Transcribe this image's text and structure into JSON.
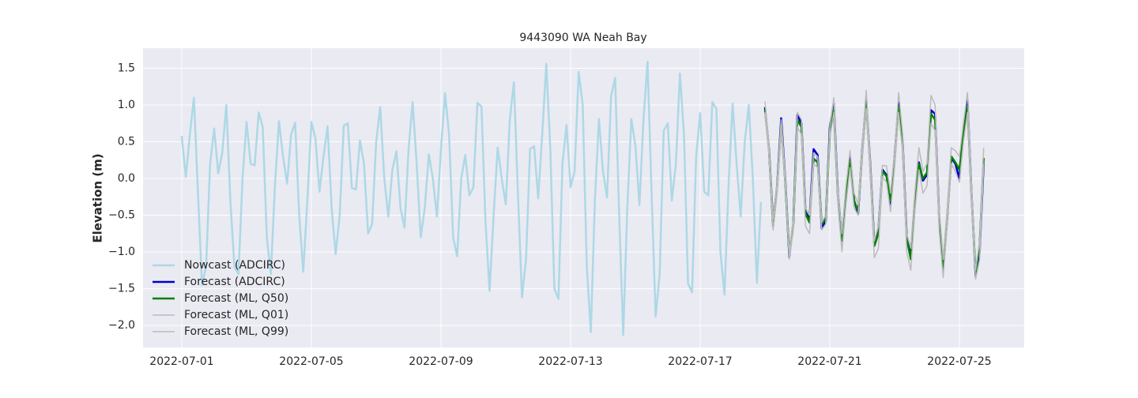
{
  "chart_data": {
    "type": "line",
    "title": "9443090 WA Neah Bay",
    "ylabel": "Elevation (m)",
    "xlim": [
      -1.195,
      26.0
    ],
    "ylim": [
      -2.3,
      1.774
    ],
    "xticks": [
      {
        "value": 0,
        "label": "2022-07-01"
      },
      {
        "value": 4,
        "label": "2022-07-05"
      },
      {
        "value": 8,
        "label": "2022-07-09"
      },
      {
        "value": 12,
        "label": "2022-07-13"
      },
      {
        "value": 16,
        "label": "2022-07-17"
      },
      {
        "value": 20,
        "label": "2022-07-21"
      },
      {
        "value": 24,
        "label": "2022-07-25"
      }
    ],
    "yticks": [
      {
        "value": -2.0,
        "label": "−2.0"
      },
      {
        "value": -1.5,
        "label": "−1.5"
      },
      {
        "value": -1.0,
        "label": "−1.0"
      },
      {
        "value": -0.5,
        "label": "−0.5"
      },
      {
        "value": 0.0,
        "label": "0.0"
      },
      {
        "value": 0.5,
        "label": "0.5"
      },
      {
        "value": 1.0,
        "label": "1.0"
      },
      {
        "value": 1.5,
        "label": "1.5"
      }
    ],
    "grid": true,
    "legend": "lower left",
    "series": [
      {
        "name": "Nowcast (ADCIRC)",
        "color": "#add8e6",
        "linewidth": 2.5,
        "x": [
          0,
          0.125,
          0.25,
          0.375,
          0.5,
          0.625,
          0.75,
          0.875,
          1,
          1.125,
          1.25,
          1.375,
          1.5,
          1.625,
          1.75,
          1.875,
          2,
          2.125,
          2.25,
          2.375,
          2.5,
          2.625,
          2.75,
          2.875,
          3,
          3.125,
          3.25,
          3.375,
          3.5,
          3.625,
          3.75,
          3.875,
          4,
          4.125,
          4.25,
          4.375,
          4.5,
          4.625,
          4.75,
          4.875,
          5,
          5.125,
          5.25,
          5.375,
          5.5,
          5.625,
          5.75,
          5.875,
          6,
          6.125,
          6.25,
          6.375,
          6.5,
          6.625,
          6.75,
          6.875,
          7,
          7.125,
          7.25,
          7.375,
          7.5,
          7.625,
          7.75,
          7.875,
          8,
          8.125,
          8.25,
          8.375,
          8.5,
          8.625,
          8.75,
          8.875,
          9,
          9.125,
          9.25,
          9.375,
          9.5,
          9.625,
          9.75,
          9.875,
          10,
          10.125,
          10.25,
          10.375,
          10.5,
          10.625,
          10.75,
          10.875,
          11,
          11.125,
          11.25,
          11.375,
          11.5,
          11.625,
          11.75,
          11.875,
          12,
          12.125,
          12.25,
          12.375,
          12.5,
          12.625,
          12.75,
          12.875,
          13,
          13.125,
          13.25,
          13.375,
          13.5,
          13.625,
          13.75,
          13.875,
          14,
          14.125,
          14.25,
          14.375,
          14.5,
          14.625,
          14.75,
          14.875,
          15,
          15.125,
          15.25,
          15.375,
          15.5,
          15.625,
          15.75,
          15.875,
          16,
          16.125,
          16.25,
          16.375,
          16.5,
          16.625,
          16.75,
          16.875,
          17,
          17.125,
          17.25,
          17.375,
          17.5,
          17.625,
          17.75,
          17.875
        ],
        "values": [
          0.58,
          0.02,
          0.6,
          1.1,
          -0.2,
          -1.45,
          -1.2,
          0.2,
          0.68,
          0.07,
          0.35,
          1.0,
          -0.3,
          -1.2,
          -1.3,
          0.0,
          0.77,
          0.2,
          0.18,
          0.9,
          0.7,
          -0.8,
          -1.3,
          -0.1,
          0.78,
          0.3,
          -0.07,
          0.6,
          0.76,
          -0.5,
          -1.27,
          -0.3,
          0.77,
          0.55,
          -0.18,
          0.3,
          0.71,
          -0.4,
          -1.03,
          -0.5,
          0.72,
          0.75,
          -0.13,
          -0.15,
          0.52,
          0.2,
          -0.75,
          -0.62,
          0.5,
          0.97,
          0.0,
          -0.52,
          0.12,
          0.37,
          -0.4,
          -0.67,
          0.4,
          1.04,
          0.2,
          -0.8,
          -0.4,
          0.33,
          0.0,
          -0.52,
          0.4,
          1.16,
          0.6,
          -0.8,
          -1.06,
          0.0,
          0.32,
          -0.23,
          -0.12,
          1.03,
          0.98,
          -0.6,
          -1.53,
          -0.5,
          0.42,
          0.0,
          -0.35,
          0.8,
          1.31,
          -0.2,
          -1.62,
          -1.1,
          0.4,
          0.44,
          -0.27,
          0.6,
          1.56,
          0.4,
          -1.5,
          -1.64,
          0.2,
          0.73,
          -0.12,
          0.1,
          1.45,
          1.0,
          -1.2,
          -2.09,
          -0.3,
          0.81,
          0.1,
          -0.26,
          1.12,
          1.37,
          -0.5,
          -2.13,
          -0.4,
          0.81,
          0.45,
          -0.36,
          0.8,
          1.59,
          -0.2,
          -1.88,
          -1.3,
          0.65,
          0.75,
          -0.3,
          0.2,
          1.43,
          0.6,
          -1.43,
          -1.55,
          0.3,
          0.89,
          -0.18,
          -0.23,
          1.04,
          0.95,
          -1.0,
          -1.58,
          -0.1,
          1.02,
          0.2,
          -0.52,
          0.5,
          1.0,
          0.0,
          -1.42,
          -0.32
        ]
      },
      {
        "name": "Forecast (ADCIRC)",
        "color": "#0000cd",
        "linewidth": 2.5,
        "x": [
          18,
          18.125,
          18.25,
          18.375,
          18.5,
          18.625,
          18.75,
          18.875,
          19,
          19.125,
          19.25,
          19.375,
          19.5,
          19.625,
          19.75,
          19.875,
          20,
          20.125,
          20.25,
          20.375,
          20.5,
          20.625,
          20.75,
          20.875,
          21,
          21.125,
          21.25,
          21.375,
          21.5,
          21.625,
          21.75,
          21.875,
          22,
          22.125,
          22.25,
          22.375,
          22.5,
          22.625,
          22.75,
          22.875,
          23,
          23.125,
          23.25,
          23.375,
          23.5,
          23.625,
          23.75,
          23.875,
          24,
          24.125,
          24.25,
          24.375,
          24.5,
          24.625,
          24.75
        ],
        "values": [
          0.97,
          0.4,
          -0.6,
          -0.1,
          0.82,
          0.0,
          -1.07,
          -0.6,
          0.87,
          0.75,
          -0.45,
          -0.55,
          0.4,
          0.32,
          -0.68,
          -0.58,
          0.7,
          1.02,
          -0.2,
          -0.8,
          -0.2,
          0.3,
          -0.3,
          -0.48,
          0.4,
          1.07,
          0.2,
          -0.9,
          -0.7,
          0.12,
          0.05,
          -0.35,
          0.3,
          1.03,
          0.5,
          -0.8,
          -1.05,
          -0.3,
          0.22,
          -0.03,
          0.05,
          0.93,
          0.88,
          -0.5,
          -1.2,
          -0.5,
          0.28,
          0.2,
          0.0,
          0.7,
          1.07,
          -0.2,
          -1.33,
          -1.0,
          0.2
        ]
      },
      {
        "name": "Forecast (ML, Q50)",
        "color": "#008000",
        "linewidth": 2.5,
        "x": [
          18,
          18.125,
          18.25,
          18.375,
          18.5,
          18.625,
          18.75,
          18.875,
          19,
          19.125,
          19.25,
          19.375,
          19.5,
          19.625,
          19.75,
          19.875,
          20,
          20.125,
          20.25,
          20.375,
          20.5,
          20.625,
          20.75,
          20.875,
          21,
          21.125,
          21.25,
          21.375,
          21.5,
          21.625,
          21.75,
          21.875,
          22,
          22.125,
          22.25,
          22.375,
          22.5,
          22.625,
          22.75,
          22.875,
          23,
          23.125,
          23.25,
          23.375,
          23.5,
          23.625,
          23.75,
          23.875,
          24,
          24.125,
          24.25,
          24.375,
          24.5,
          24.625,
          24.75
        ],
        "values": [
          0.94,
          0.38,
          -0.65,
          -0.12,
          0.75,
          -0.05,
          -1.02,
          -0.62,
          0.8,
          0.7,
          -0.48,
          -0.6,
          0.27,
          0.22,
          -0.62,
          -0.55,
          0.6,
          0.95,
          -0.25,
          -0.85,
          -0.25,
          0.23,
          -0.3,
          -0.45,
          0.35,
          1.02,
          0.15,
          -0.92,
          -0.75,
          0.1,
          0.03,
          -0.3,
          0.25,
          0.97,
          0.45,
          -0.82,
          -1.1,
          -0.35,
          0.2,
          0.0,
          0.08,
          0.88,
          0.8,
          -0.55,
          -1.23,
          -0.55,
          0.3,
          0.22,
          0.12,
          0.6,
          0.98,
          -0.25,
          -1.28,
          -0.9,
          0.28
        ]
      },
      {
        "name": "Forecast (ML, Q01)",
        "color": "#bbbbbb",
        "linewidth": 1.5,
        "x": [
          18,
          18.125,
          18.25,
          18.375,
          18.5,
          18.625,
          18.75,
          18.875,
          19,
          19.125,
          19.25,
          19.375,
          19.5,
          19.625,
          19.75,
          19.875,
          20,
          20.125,
          20.25,
          20.375,
          20.5,
          20.625,
          20.75,
          20.875,
          21,
          21.125,
          21.25,
          21.375,
          21.5,
          21.625,
          21.75,
          21.875,
          22,
          22.125,
          22.25,
          22.375,
          22.5,
          22.625,
          22.75,
          22.875,
          23,
          23.125,
          23.25,
          23.375,
          23.5,
          23.625,
          23.75,
          23.875,
          24,
          24.125,
          24.25,
          24.375,
          24.5,
          24.625,
          24.75
        ],
        "values": [
          0.9,
          0.3,
          -0.7,
          -0.2,
          0.65,
          -0.1,
          -1.1,
          -0.7,
          0.7,
          0.6,
          -0.65,
          -0.75,
          0.2,
          0.15,
          -0.7,
          -0.62,
          0.55,
          0.9,
          -0.35,
          -1.0,
          -0.35,
          0.15,
          -0.4,
          -0.5,
          0.3,
          0.95,
          0.05,
          -1.08,
          -0.95,
          0.02,
          -0.05,
          -0.45,
          0.15,
          0.9,
          0.35,
          -1.0,
          -1.25,
          -0.45,
          0.12,
          -0.2,
          -0.1,
          0.75,
          0.65,
          -0.7,
          -1.35,
          -0.6,
          0.2,
          0.1,
          -0.05,
          0.5,
          0.9,
          -0.35,
          -1.37,
          -1.1,
          0.2
        ]
      },
      {
        "name": "Forecast (ML, Q99)",
        "color": "#bbbbbb",
        "linewidth": 1.5,
        "x": [
          18,
          18.125,
          18.25,
          18.375,
          18.5,
          18.625,
          18.75,
          18.875,
          19,
          19.125,
          19.25,
          19.375,
          19.5,
          19.625,
          19.75,
          19.875,
          20,
          20.125,
          20.25,
          20.375,
          20.5,
          20.625,
          20.75,
          20.875,
          21,
          21.125,
          21.25,
          21.375,
          21.5,
          21.625,
          21.75,
          21.875,
          22,
          22.125,
          22.25,
          22.375,
          22.5,
          22.625,
          22.75,
          22.875,
          23,
          23.125,
          23.25,
          23.375,
          23.5,
          23.625,
          23.75,
          23.875,
          24,
          24.125,
          24.25,
          24.375,
          24.5,
          24.625,
          24.75
        ],
        "values": [
          1.05,
          0.45,
          -0.55,
          -0.05,
          0.8,
          0.05,
          -1.0,
          -0.55,
          0.9,
          0.8,
          -0.4,
          -0.5,
          0.35,
          0.3,
          -0.6,
          -0.5,
          0.7,
          1.1,
          -0.15,
          -0.75,
          -0.1,
          0.38,
          -0.2,
          -0.35,
          0.45,
          1.2,
          0.25,
          -0.85,
          -0.65,
          0.18,
          0.17,
          -0.2,
          0.35,
          1.17,
          0.6,
          -0.75,
          -0.95,
          -0.2,
          0.42,
          0.1,
          0.2,
          1.13,
          1.0,
          -0.4,
          -1.1,
          -0.4,
          0.42,
          0.38,
          0.3,
          0.75,
          1.17,
          -0.1,
          -1.25,
          -0.85,
          0.42
        ]
      }
    ]
  }
}
